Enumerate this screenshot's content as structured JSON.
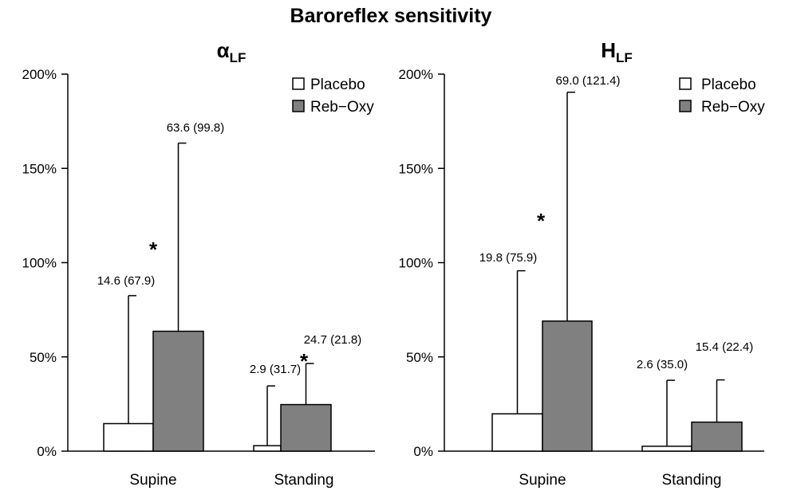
{
  "title": "Baroreflex sensitivity",
  "chart_data": [
    {
      "type": "bar",
      "title_main": "α",
      "title_sub": "LF",
      "categories": [
        "Supine",
        "Standing"
      ],
      "ylim": [
        0,
        200
      ],
      "yticks": [
        "0%",
        "50%",
        "100%",
        "150%",
        "200%"
      ],
      "ytick_values": [
        0,
        50,
        100,
        150,
        200
      ],
      "legend_position": "top-right",
      "series": [
        {
          "name": "Placebo",
          "color": "#ffffff",
          "values": [
            14.6,
            2.9
          ],
          "errors": [
            67.9,
            31.7
          ],
          "labels": [
            "14.6 (67.9)",
            "2.9 (31.7)"
          ]
        },
        {
          "name": "Reb−Oxy",
          "color": "#808080",
          "values": [
            63.6,
            24.7
          ],
          "errors": [
            99.8,
            21.8
          ],
          "labels": [
            "63.6 (99.8)",
            "24.7 (21.8)"
          ]
        }
      ],
      "significance_marks": [
        "*",
        "*"
      ]
    },
    {
      "type": "bar",
      "title_main": "H",
      "title_sub": "LF",
      "categories": [
        "Supine",
        "Standing"
      ],
      "ylim": [
        0,
        200
      ],
      "yticks": [
        "0%",
        "50%",
        "100%",
        "150%",
        "200%"
      ],
      "ytick_values": [
        0,
        50,
        100,
        150,
        200
      ],
      "legend_position": "top-right",
      "series": [
        {
          "name": "Placebo",
          "color": "#ffffff",
          "values": [
            19.8,
            2.6
          ],
          "errors": [
            75.9,
            35.0
          ],
          "labels": [
            "19.8 (75.9)",
            "2.6 (35.0)"
          ]
        },
        {
          "name": "Reb−Oxy",
          "color": "#808080",
          "values": [
            69.0,
            15.4
          ],
          "errors": [
            121.4,
            22.4
          ],
          "labels": [
            "69.0 (121.4)",
            "15.4 (22.4)"
          ]
        }
      ],
      "significance_marks": [
        "*"
      ]
    }
  ]
}
